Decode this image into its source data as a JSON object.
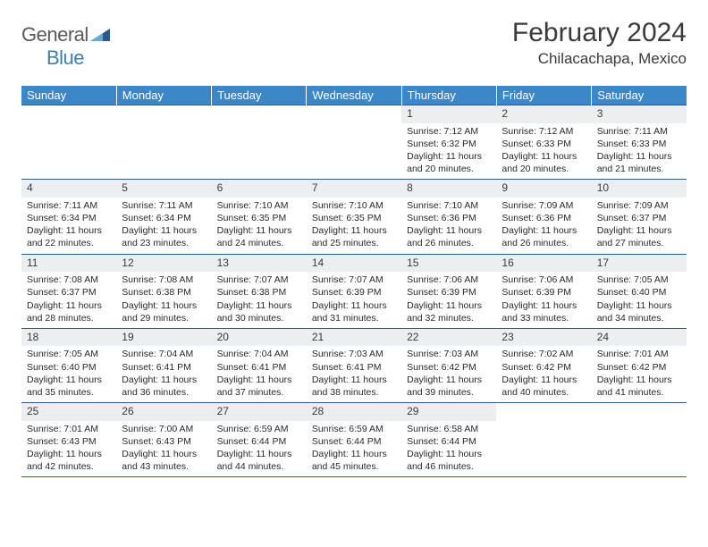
{
  "logo": {
    "text1": "General",
    "text2": "Blue"
  },
  "title": "February 2024",
  "subtitle": "Chilacachapa, Mexico",
  "colors": {
    "header_bg": "#3b87c8",
    "header_text": "#ffffff",
    "daynum_bg": "#eceff1",
    "border": "#2d5a8a",
    "logo_gray": "#5a5a5a",
    "logo_blue": "#3b7fb5"
  },
  "fonts": {
    "title_size": 30,
    "subtitle_size": 17,
    "header_size": 13,
    "daynum_size": 12,
    "info_size": 10.5
  },
  "day_names": [
    "Sunday",
    "Monday",
    "Tuesday",
    "Wednesday",
    "Thursday",
    "Friday",
    "Saturday"
  ],
  "weeks": [
    [
      {
        "n": "",
        "sunrise": "",
        "sunset": "",
        "daylight": ""
      },
      {
        "n": "",
        "sunrise": "",
        "sunset": "",
        "daylight": ""
      },
      {
        "n": "",
        "sunrise": "",
        "sunset": "",
        "daylight": ""
      },
      {
        "n": "",
        "sunrise": "",
        "sunset": "",
        "daylight": ""
      },
      {
        "n": "1",
        "sunrise": "Sunrise: 7:12 AM",
        "sunset": "Sunset: 6:32 PM",
        "daylight": "Daylight: 11 hours and 20 minutes."
      },
      {
        "n": "2",
        "sunrise": "Sunrise: 7:12 AM",
        "sunset": "Sunset: 6:33 PM",
        "daylight": "Daylight: 11 hours and 20 minutes."
      },
      {
        "n": "3",
        "sunrise": "Sunrise: 7:11 AM",
        "sunset": "Sunset: 6:33 PM",
        "daylight": "Daylight: 11 hours and 21 minutes."
      }
    ],
    [
      {
        "n": "4",
        "sunrise": "Sunrise: 7:11 AM",
        "sunset": "Sunset: 6:34 PM",
        "daylight": "Daylight: 11 hours and 22 minutes."
      },
      {
        "n": "5",
        "sunrise": "Sunrise: 7:11 AM",
        "sunset": "Sunset: 6:34 PM",
        "daylight": "Daylight: 11 hours and 23 minutes."
      },
      {
        "n": "6",
        "sunrise": "Sunrise: 7:10 AM",
        "sunset": "Sunset: 6:35 PM",
        "daylight": "Daylight: 11 hours and 24 minutes."
      },
      {
        "n": "7",
        "sunrise": "Sunrise: 7:10 AM",
        "sunset": "Sunset: 6:35 PM",
        "daylight": "Daylight: 11 hours and 25 minutes."
      },
      {
        "n": "8",
        "sunrise": "Sunrise: 7:10 AM",
        "sunset": "Sunset: 6:36 PM",
        "daylight": "Daylight: 11 hours and 26 minutes."
      },
      {
        "n": "9",
        "sunrise": "Sunrise: 7:09 AM",
        "sunset": "Sunset: 6:36 PM",
        "daylight": "Daylight: 11 hours and 26 minutes."
      },
      {
        "n": "10",
        "sunrise": "Sunrise: 7:09 AM",
        "sunset": "Sunset: 6:37 PM",
        "daylight": "Daylight: 11 hours and 27 minutes."
      }
    ],
    [
      {
        "n": "11",
        "sunrise": "Sunrise: 7:08 AM",
        "sunset": "Sunset: 6:37 PM",
        "daylight": "Daylight: 11 hours and 28 minutes."
      },
      {
        "n": "12",
        "sunrise": "Sunrise: 7:08 AM",
        "sunset": "Sunset: 6:38 PM",
        "daylight": "Daylight: 11 hours and 29 minutes."
      },
      {
        "n": "13",
        "sunrise": "Sunrise: 7:07 AM",
        "sunset": "Sunset: 6:38 PM",
        "daylight": "Daylight: 11 hours and 30 minutes."
      },
      {
        "n": "14",
        "sunrise": "Sunrise: 7:07 AM",
        "sunset": "Sunset: 6:39 PM",
        "daylight": "Daylight: 11 hours and 31 minutes."
      },
      {
        "n": "15",
        "sunrise": "Sunrise: 7:06 AM",
        "sunset": "Sunset: 6:39 PM",
        "daylight": "Daylight: 11 hours and 32 minutes."
      },
      {
        "n": "16",
        "sunrise": "Sunrise: 7:06 AM",
        "sunset": "Sunset: 6:39 PM",
        "daylight": "Daylight: 11 hours and 33 minutes."
      },
      {
        "n": "17",
        "sunrise": "Sunrise: 7:05 AM",
        "sunset": "Sunset: 6:40 PM",
        "daylight": "Daylight: 11 hours and 34 minutes."
      }
    ],
    [
      {
        "n": "18",
        "sunrise": "Sunrise: 7:05 AM",
        "sunset": "Sunset: 6:40 PM",
        "daylight": "Daylight: 11 hours and 35 minutes."
      },
      {
        "n": "19",
        "sunrise": "Sunrise: 7:04 AM",
        "sunset": "Sunset: 6:41 PM",
        "daylight": "Daylight: 11 hours and 36 minutes."
      },
      {
        "n": "20",
        "sunrise": "Sunrise: 7:04 AM",
        "sunset": "Sunset: 6:41 PM",
        "daylight": "Daylight: 11 hours and 37 minutes."
      },
      {
        "n": "21",
        "sunrise": "Sunrise: 7:03 AM",
        "sunset": "Sunset: 6:41 PM",
        "daylight": "Daylight: 11 hours and 38 minutes."
      },
      {
        "n": "22",
        "sunrise": "Sunrise: 7:03 AM",
        "sunset": "Sunset: 6:42 PM",
        "daylight": "Daylight: 11 hours and 39 minutes."
      },
      {
        "n": "23",
        "sunrise": "Sunrise: 7:02 AM",
        "sunset": "Sunset: 6:42 PM",
        "daylight": "Daylight: 11 hours and 40 minutes."
      },
      {
        "n": "24",
        "sunrise": "Sunrise: 7:01 AM",
        "sunset": "Sunset: 6:42 PM",
        "daylight": "Daylight: 11 hours and 41 minutes."
      }
    ],
    [
      {
        "n": "25",
        "sunrise": "Sunrise: 7:01 AM",
        "sunset": "Sunset: 6:43 PM",
        "daylight": "Daylight: 11 hours and 42 minutes."
      },
      {
        "n": "26",
        "sunrise": "Sunrise: 7:00 AM",
        "sunset": "Sunset: 6:43 PM",
        "daylight": "Daylight: 11 hours and 43 minutes."
      },
      {
        "n": "27",
        "sunrise": "Sunrise: 6:59 AM",
        "sunset": "Sunset: 6:44 PM",
        "daylight": "Daylight: 11 hours and 44 minutes."
      },
      {
        "n": "28",
        "sunrise": "Sunrise: 6:59 AM",
        "sunset": "Sunset: 6:44 PM",
        "daylight": "Daylight: 11 hours and 45 minutes."
      },
      {
        "n": "29",
        "sunrise": "Sunrise: 6:58 AM",
        "sunset": "Sunset: 6:44 PM",
        "daylight": "Daylight: 11 hours and 46 minutes."
      },
      {
        "n": "",
        "sunrise": "",
        "sunset": "",
        "daylight": ""
      },
      {
        "n": "",
        "sunrise": "",
        "sunset": "",
        "daylight": ""
      }
    ]
  ]
}
